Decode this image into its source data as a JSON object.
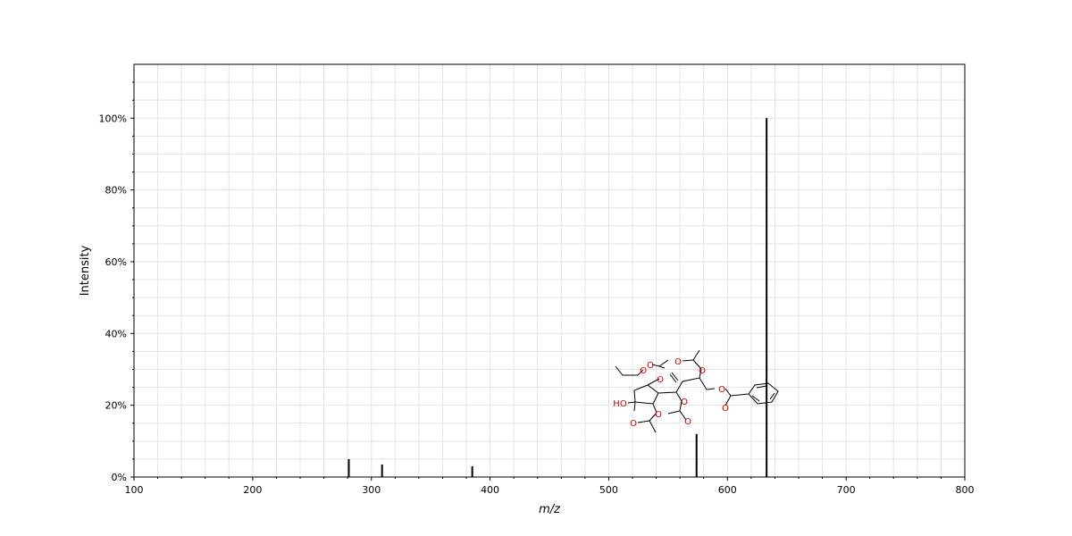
{
  "chart_data": {
    "type": "bar",
    "title": "",
    "xlabel": "m/z",
    "ylabel": "Intensity",
    "xlim": [
      100,
      800
    ],
    "ylim": [
      0,
      115
    ],
    "x_ticks": [
      "100",
      "200",
      "300",
      "400",
      "500",
      "600",
      "700",
      "800"
    ],
    "y_ticks": [
      "0%",
      "20%",
      "40%",
      "60%",
      "80%",
      "100%"
    ],
    "grid": true,
    "peaks": [
      {
        "mz": 281,
        "intensity": 5
      },
      {
        "mz": 309,
        "intensity": 3.5
      },
      {
        "mz": 385,
        "intensity": 3
      },
      {
        "mz": 574,
        "intensity": 12
      },
      {
        "mz": 633,
        "intensity": 100
      }
    ],
    "structure_atom_labels": [
      "O",
      "O",
      "O",
      "O",
      "O",
      "O",
      "O",
      "O",
      "O",
      "O",
      "O",
      "HO"
    ]
  }
}
